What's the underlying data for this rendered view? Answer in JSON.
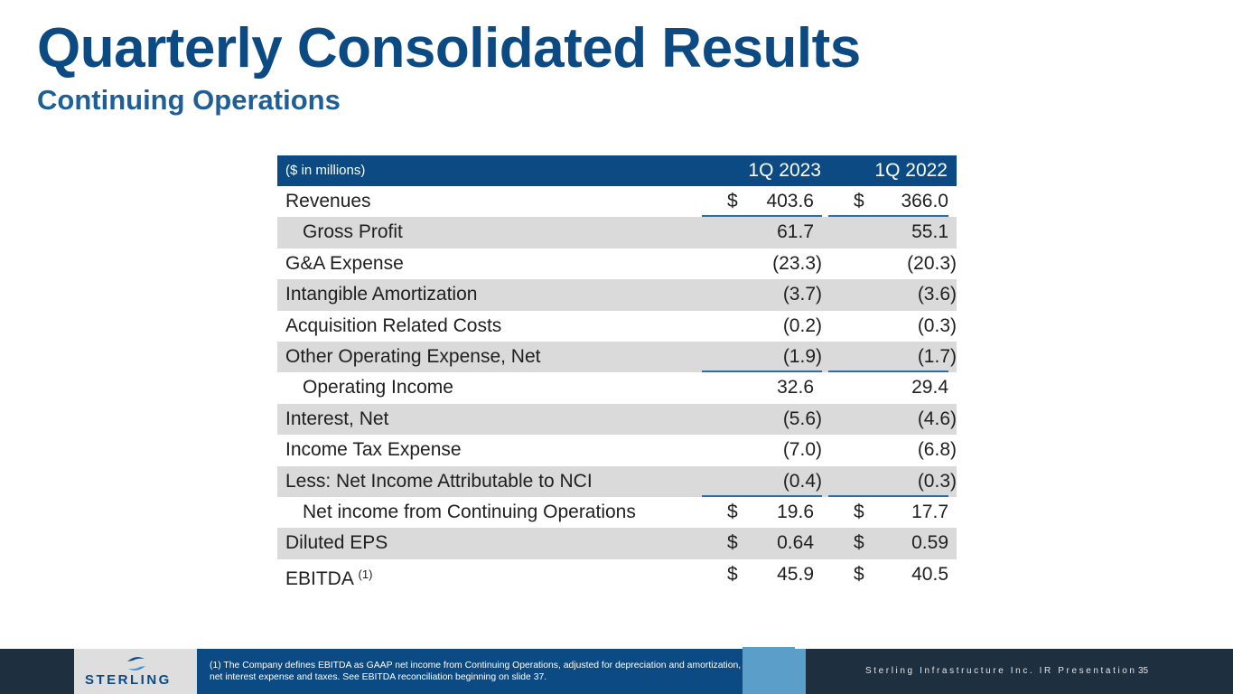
{
  "title": "Quarterly Consolidated Results",
  "subtitle": "Continuing Operations",
  "table": {
    "unit_label": "($ in millions)",
    "col1_header": "1Q 2023",
    "col2_header": "1Q 2022",
    "rows": [
      {
        "label": "Revenues",
        "c1_dollar": "$",
        "c1": "403.6",
        "c2_dollar": "$",
        "c2": "366.0"
      },
      {
        "label": "Gross Profit",
        "c1": "61.7",
        "c2": "55.1"
      },
      {
        "label": "G&A Expense",
        "c1": "(23.3)",
        "c2": "(20.3)"
      },
      {
        "label": "Intangible Amortization",
        "c1": "(3.7)",
        "c2": "(3.6)"
      },
      {
        "label": "Acquisition Related Costs",
        "c1": "(0.2)",
        "c2": "(0.3)"
      },
      {
        "label": "Other Operating Expense, Net",
        "c1": "(1.9)",
        "c2": "(1.7)"
      },
      {
        "label": "Operating Income",
        "c1": "32.6",
        "c2": "29.4"
      },
      {
        "label": "Interest, Net",
        "c1": "(5.6)",
        "c2": "(4.6)"
      },
      {
        "label": "Income Tax Expense",
        "c1": "(7.0)",
        "c2": "(6.8)"
      },
      {
        "label": "Less: Net Income Attributable to NCI",
        "c1": "(0.4)",
        "c2": "(0.3)"
      },
      {
        "label": "Net income from Continuing Operations",
        "c1_dollar": "$",
        "c1": "19.6",
        "c2_dollar": "$",
        "c2": "17.7"
      },
      {
        "label": "Diluted EPS",
        "c1_dollar": "$",
        "c1": "0.64",
        "c2_dollar": "$",
        "c2": "0.59"
      },
      {
        "label": "EBITDA",
        "footnote_mark": "(1)",
        "c1_dollar": "$",
        "c1": "45.9",
        "c2_dollar": "$",
        "c2": "40.5"
      }
    ]
  },
  "footer": {
    "logo_text": "STERLING",
    "footnote": "(1)   The Company defines EBITDA as GAAP net income from Continuing Operations, adjusted for depreciation and amortization, net interest expense and taxes. See EBITDA reconciliation beginning on slide 37.",
    "presentation_title": "Sterling Infrastructure Inc. IR Presentation",
    "page_number": "35"
  },
  "colors": {
    "brand_blue": "#0b4a82",
    "row_shade": "#dadada",
    "footer_dark": "#1e2f40",
    "accent_light_blue": "#5b9ec9"
  }
}
